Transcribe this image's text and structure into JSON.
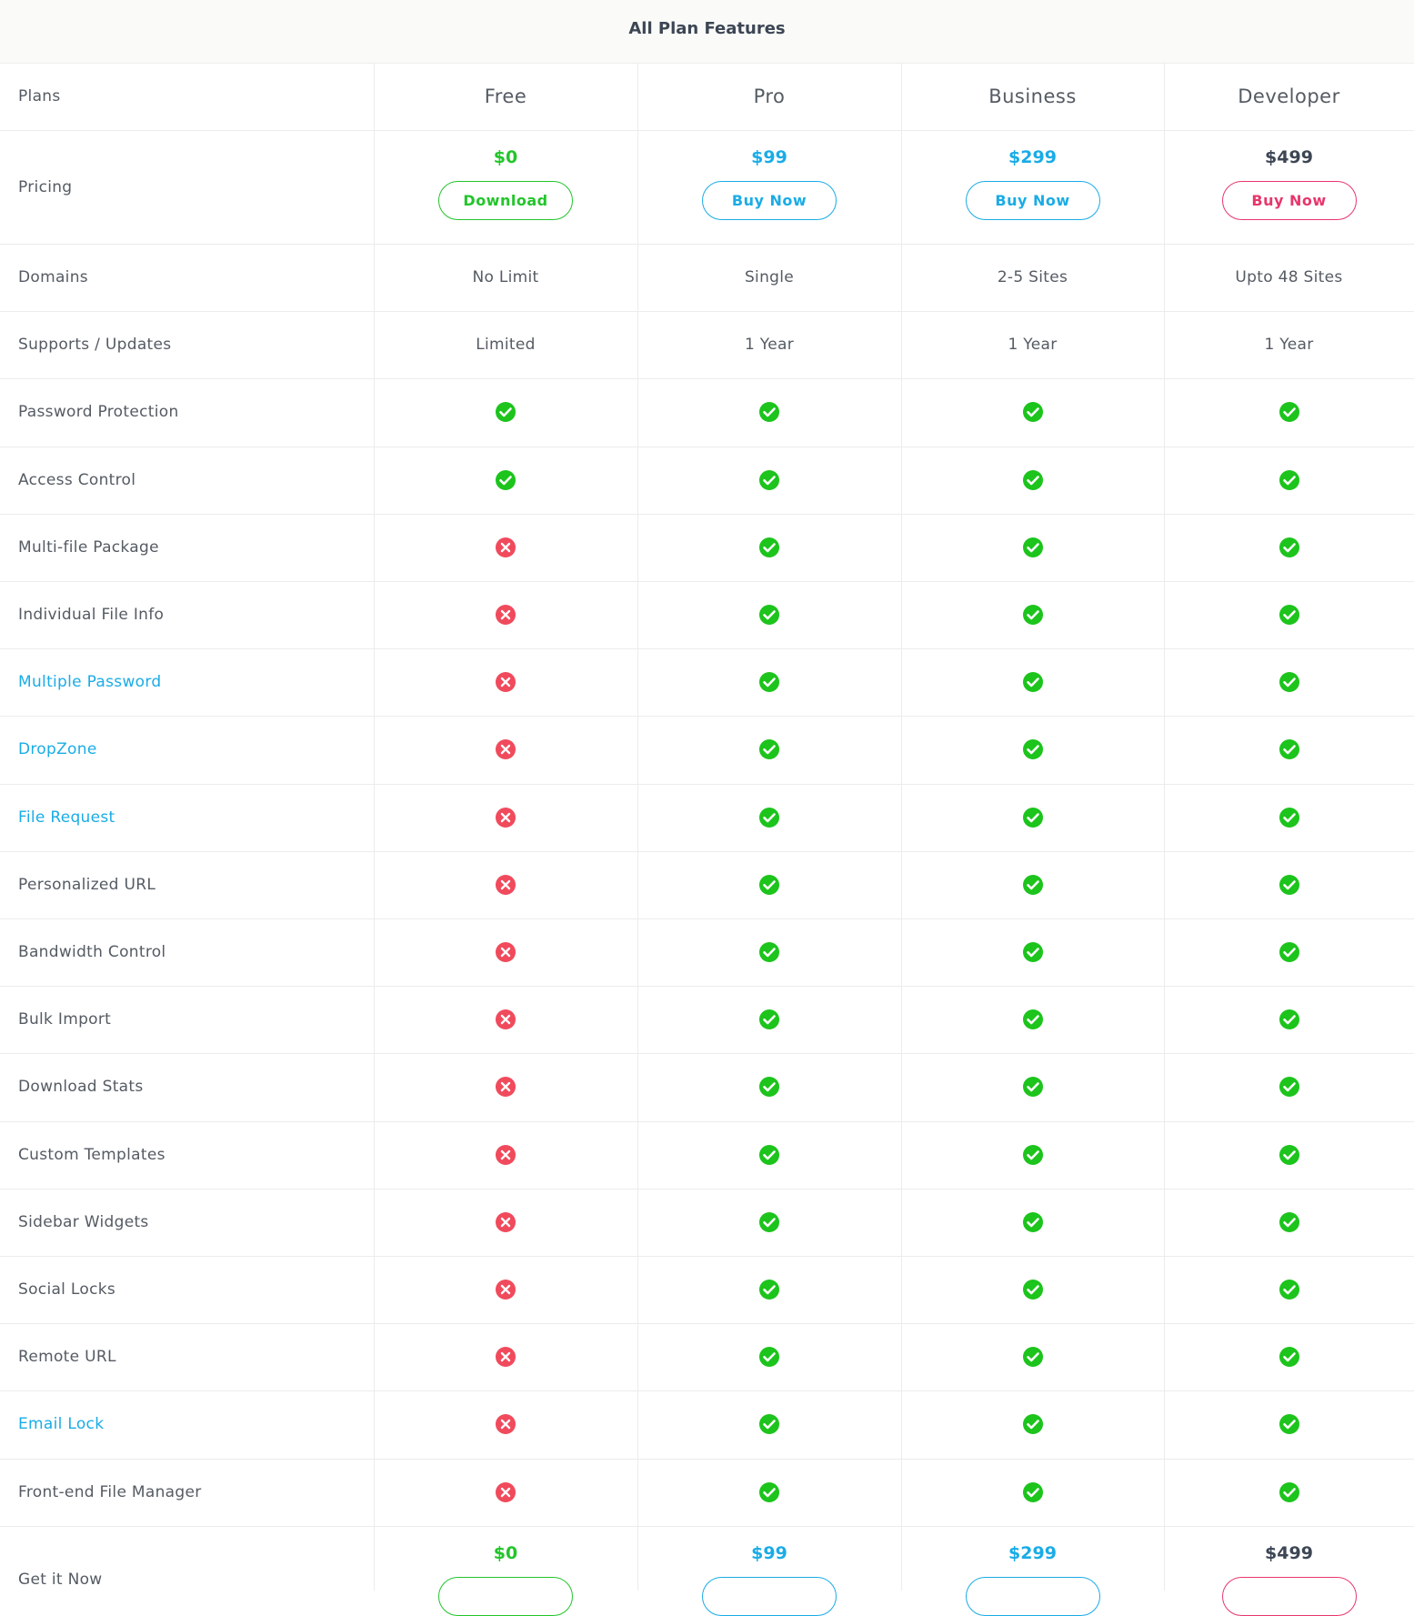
{
  "title": "All Plan Features",
  "plans_label": "Plans",
  "pricing_label": "Pricing",
  "footer_label": "Get it Now",
  "plans": [
    {
      "name": "Free",
      "price": "$0",
      "button": "Download",
      "price_color": "#22c52a",
      "button_color": "#22c52a"
    },
    {
      "name": "Pro",
      "price": "$99",
      "button": "Buy Now",
      "price_color": "#1aace6",
      "button_color": "#1aace6"
    },
    {
      "name": "Business",
      "price": "$299",
      "button": "Buy Now",
      "price_color": "#1aace6",
      "button_color": "#1aace6"
    },
    {
      "name": "Developer",
      "price": "$499",
      "button": "Buy Now",
      "price_color": "#3c4654",
      "button_color": "#e8366c"
    }
  ],
  "rows": [
    {
      "label": "Domains",
      "values": [
        "No Limit",
        "Single",
        "2-5 Sites",
        "Upto 48 Sites"
      ]
    },
    {
      "label": "Supports / Updates",
      "values": [
        "Limited",
        "1 Year",
        "1 Year",
        "1 Year"
      ]
    },
    {
      "label": "Password Protection",
      "values": [
        true,
        true,
        true,
        true
      ]
    },
    {
      "label": "Access Control",
      "values": [
        true,
        true,
        true,
        true
      ]
    },
    {
      "label": "Multi-file Package",
      "values": [
        false,
        true,
        true,
        true
      ]
    },
    {
      "label": "Individual File Info",
      "values": [
        false,
        true,
        true,
        true
      ]
    },
    {
      "label": "Multiple Password",
      "link": true,
      "values": [
        false,
        true,
        true,
        true
      ]
    },
    {
      "label": "DropZone",
      "link": true,
      "values": [
        false,
        true,
        true,
        true
      ]
    },
    {
      "label": "File Request",
      "link": true,
      "values": [
        false,
        true,
        true,
        true
      ]
    },
    {
      "label": "Personalized URL",
      "values": [
        false,
        true,
        true,
        true
      ]
    },
    {
      "label": "Bandwidth Control",
      "values": [
        false,
        true,
        true,
        true
      ]
    },
    {
      "label": "Bulk Import",
      "values": [
        false,
        true,
        true,
        true
      ]
    },
    {
      "label": "Download Stats",
      "values": [
        false,
        true,
        true,
        true
      ]
    },
    {
      "label": "Custom Templates",
      "values": [
        false,
        true,
        true,
        true
      ]
    },
    {
      "label": "Sidebar Widgets",
      "values": [
        false,
        true,
        true,
        true
      ]
    },
    {
      "label": "Social Locks",
      "values": [
        false,
        true,
        true,
        true
      ]
    },
    {
      "label": "Remote URL",
      "values": [
        false,
        true,
        true,
        true
      ]
    },
    {
      "label": "Email Lock",
      "link": true,
      "values": [
        false,
        true,
        true,
        true
      ]
    },
    {
      "label": "Front-end File Manager",
      "values": [
        false,
        true,
        true,
        true
      ]
    }
  ]
}
